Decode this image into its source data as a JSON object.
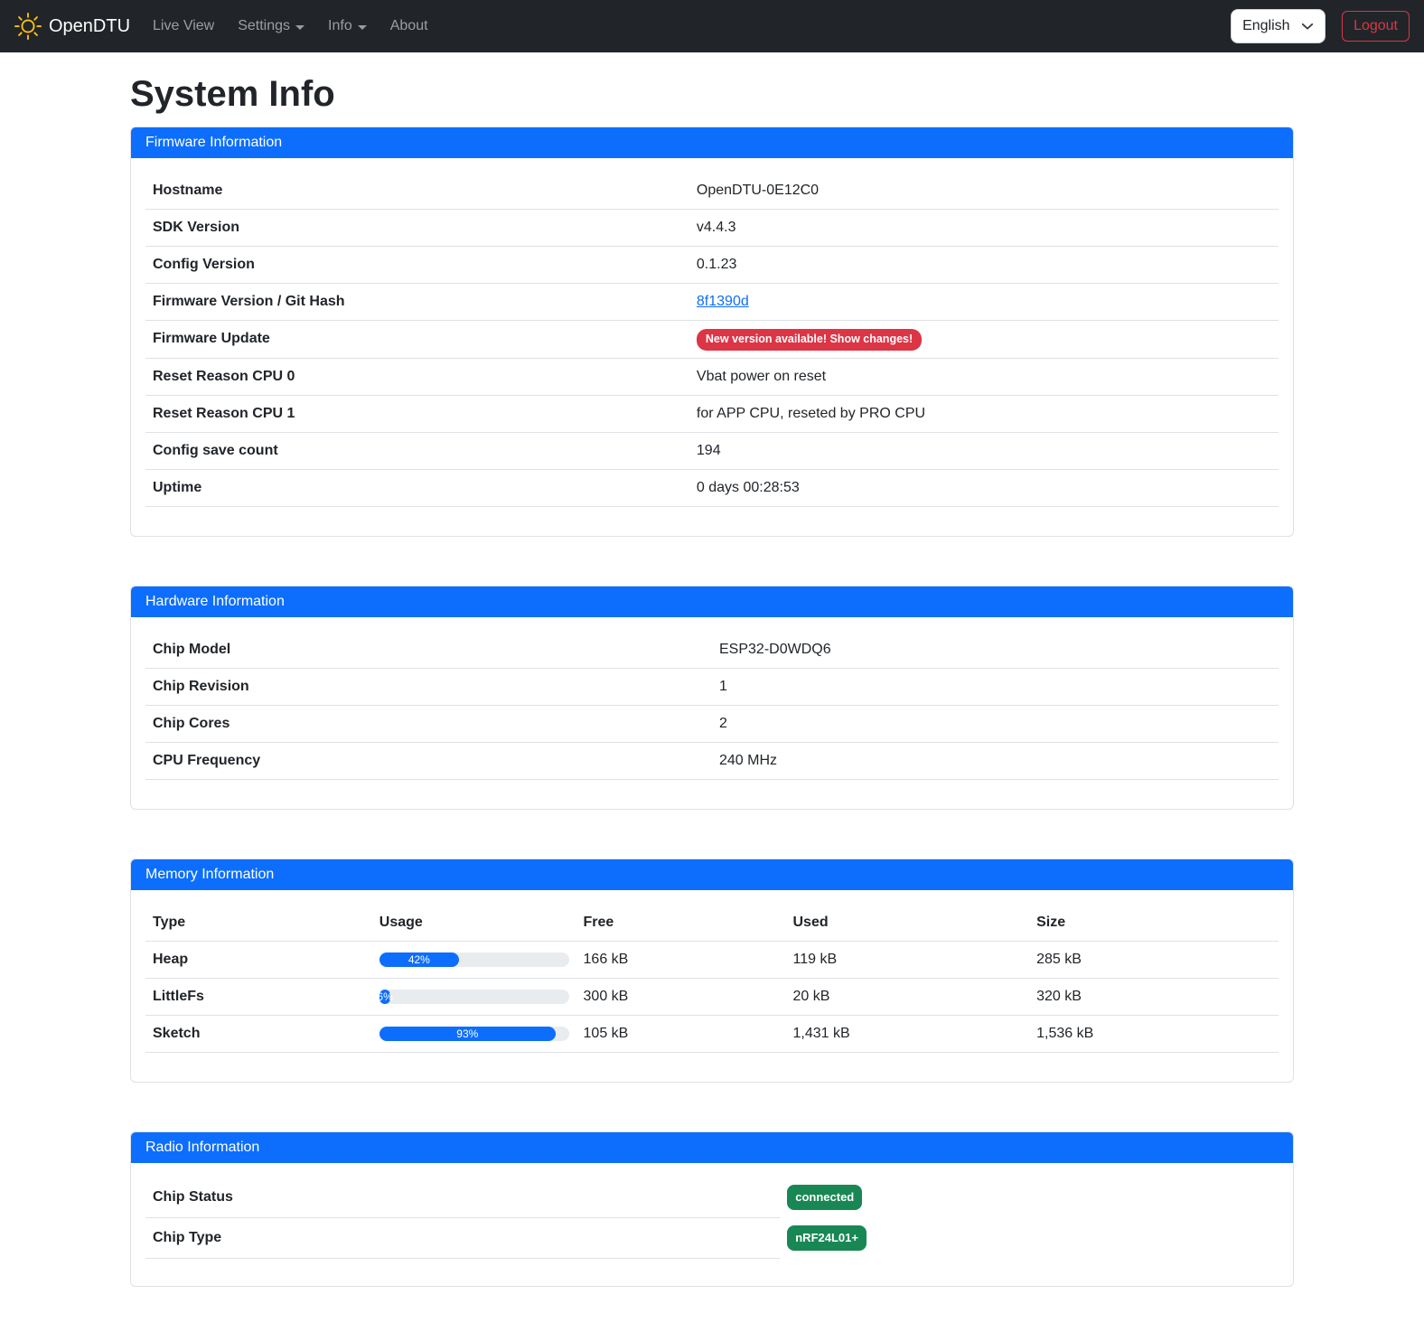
{
  "navbar": {
    "brand": "OpenDTU",
    "items": [
      {
        "label": "Live View"
      },
      {
        "label": "Settings"
      },
      {
        "label": "Info"
      },
      {
        "label": "About"
      }
    ],
    "language": "English",
    "logout_label": "Logout"
  },
  "page_title": "System Info",
  "firmware": {
    "header": "Firmware Information",
    "rows": [
      {
        "label": "Hostname",
        "value": "OpenDTU-0E12C0"
      },
      {
        "label": "SDK Version",
        "value": "v4.4.3"
      },
      {
        "label": "Config Version",
        "value": "0.1.23"
      },
      {
        "label": "Firmware Version / Git Hash",
        "value": "8f1390d"
      },
      {
        "label": "Firmware Update",
        "value": "New version available! Show changes!"
      },
      {
        "label": "Reset Reason CPU 0",
        "value": "Vbat power on reset"
      },
      {
        "label": "Reset Reason CPU 1",
        "value": "for APP CPU, reseted by PRO CPU"
      },
      {
        "label": "Config save count",
        "value": "194"
      },
      {
        "label": "Uptime",
        "value": "0 days 00:28:53"
      }
    ]
  },
  "hardware": {
    "header": "Hardware Information",
    "rows": [
      {
        "label": "Chip Model",
        "value": "ESP32-D0WDQ6"
      },
      {
        "label": "Chip Revision",
        "value": "1"
      },
      {
        "label": "Chip Cores",
        "value": "2"
      },
      {
        "label": "CPU Frequency",
        "value": "240 MHz"
      }
    ]
  },
  "memory": {
    "header": "Memory Information",
    "columns": {
      "type": "Type",
      "usage": "Usage",
      "free": "Free",
      "used": "Used",
      "size": "Size"
    },
    "rows": [
      {
        "type": "Heap",
        "usage_pct": 42,
        "usage_label": "42%",
        "free": "166 kB",
        "used": "119 kB",
        "size": "285 kB"
      },
      {
        "type": "LittleFs",
        "usage_pct": 6,
        "usage_label": "6%",
        "free": "300 kB",
        "used": "20 kB",
        "size": "320 kB"
      },
      {
        "type": "Sketch",
        "usage_pct": 93,
        "usage_label": "93%",
        "free": "105 kB",
        "used": "1,431 kB",
        "size": "1,536 kB"
      }
    ]
  },
  "radio": {
    "header": "Radio Information",
    "rows": [
      {
        "label": "Chip Status",
        "badge": "connected"
      },
      {
        "label": "Chip Type",
        "badge": "nRF24L01+"
      }
    ]
  },
  "colors": {
    "primary": "#0d6efd",
    "danger": "#dc3545",
    "success": "#198754",
    "brand_icon": "#ffc107",
    "navbar_bg": "#212529",
    "progress_track": "#e9ecef",
    "table_border": "#dee2e6"
  }
}
